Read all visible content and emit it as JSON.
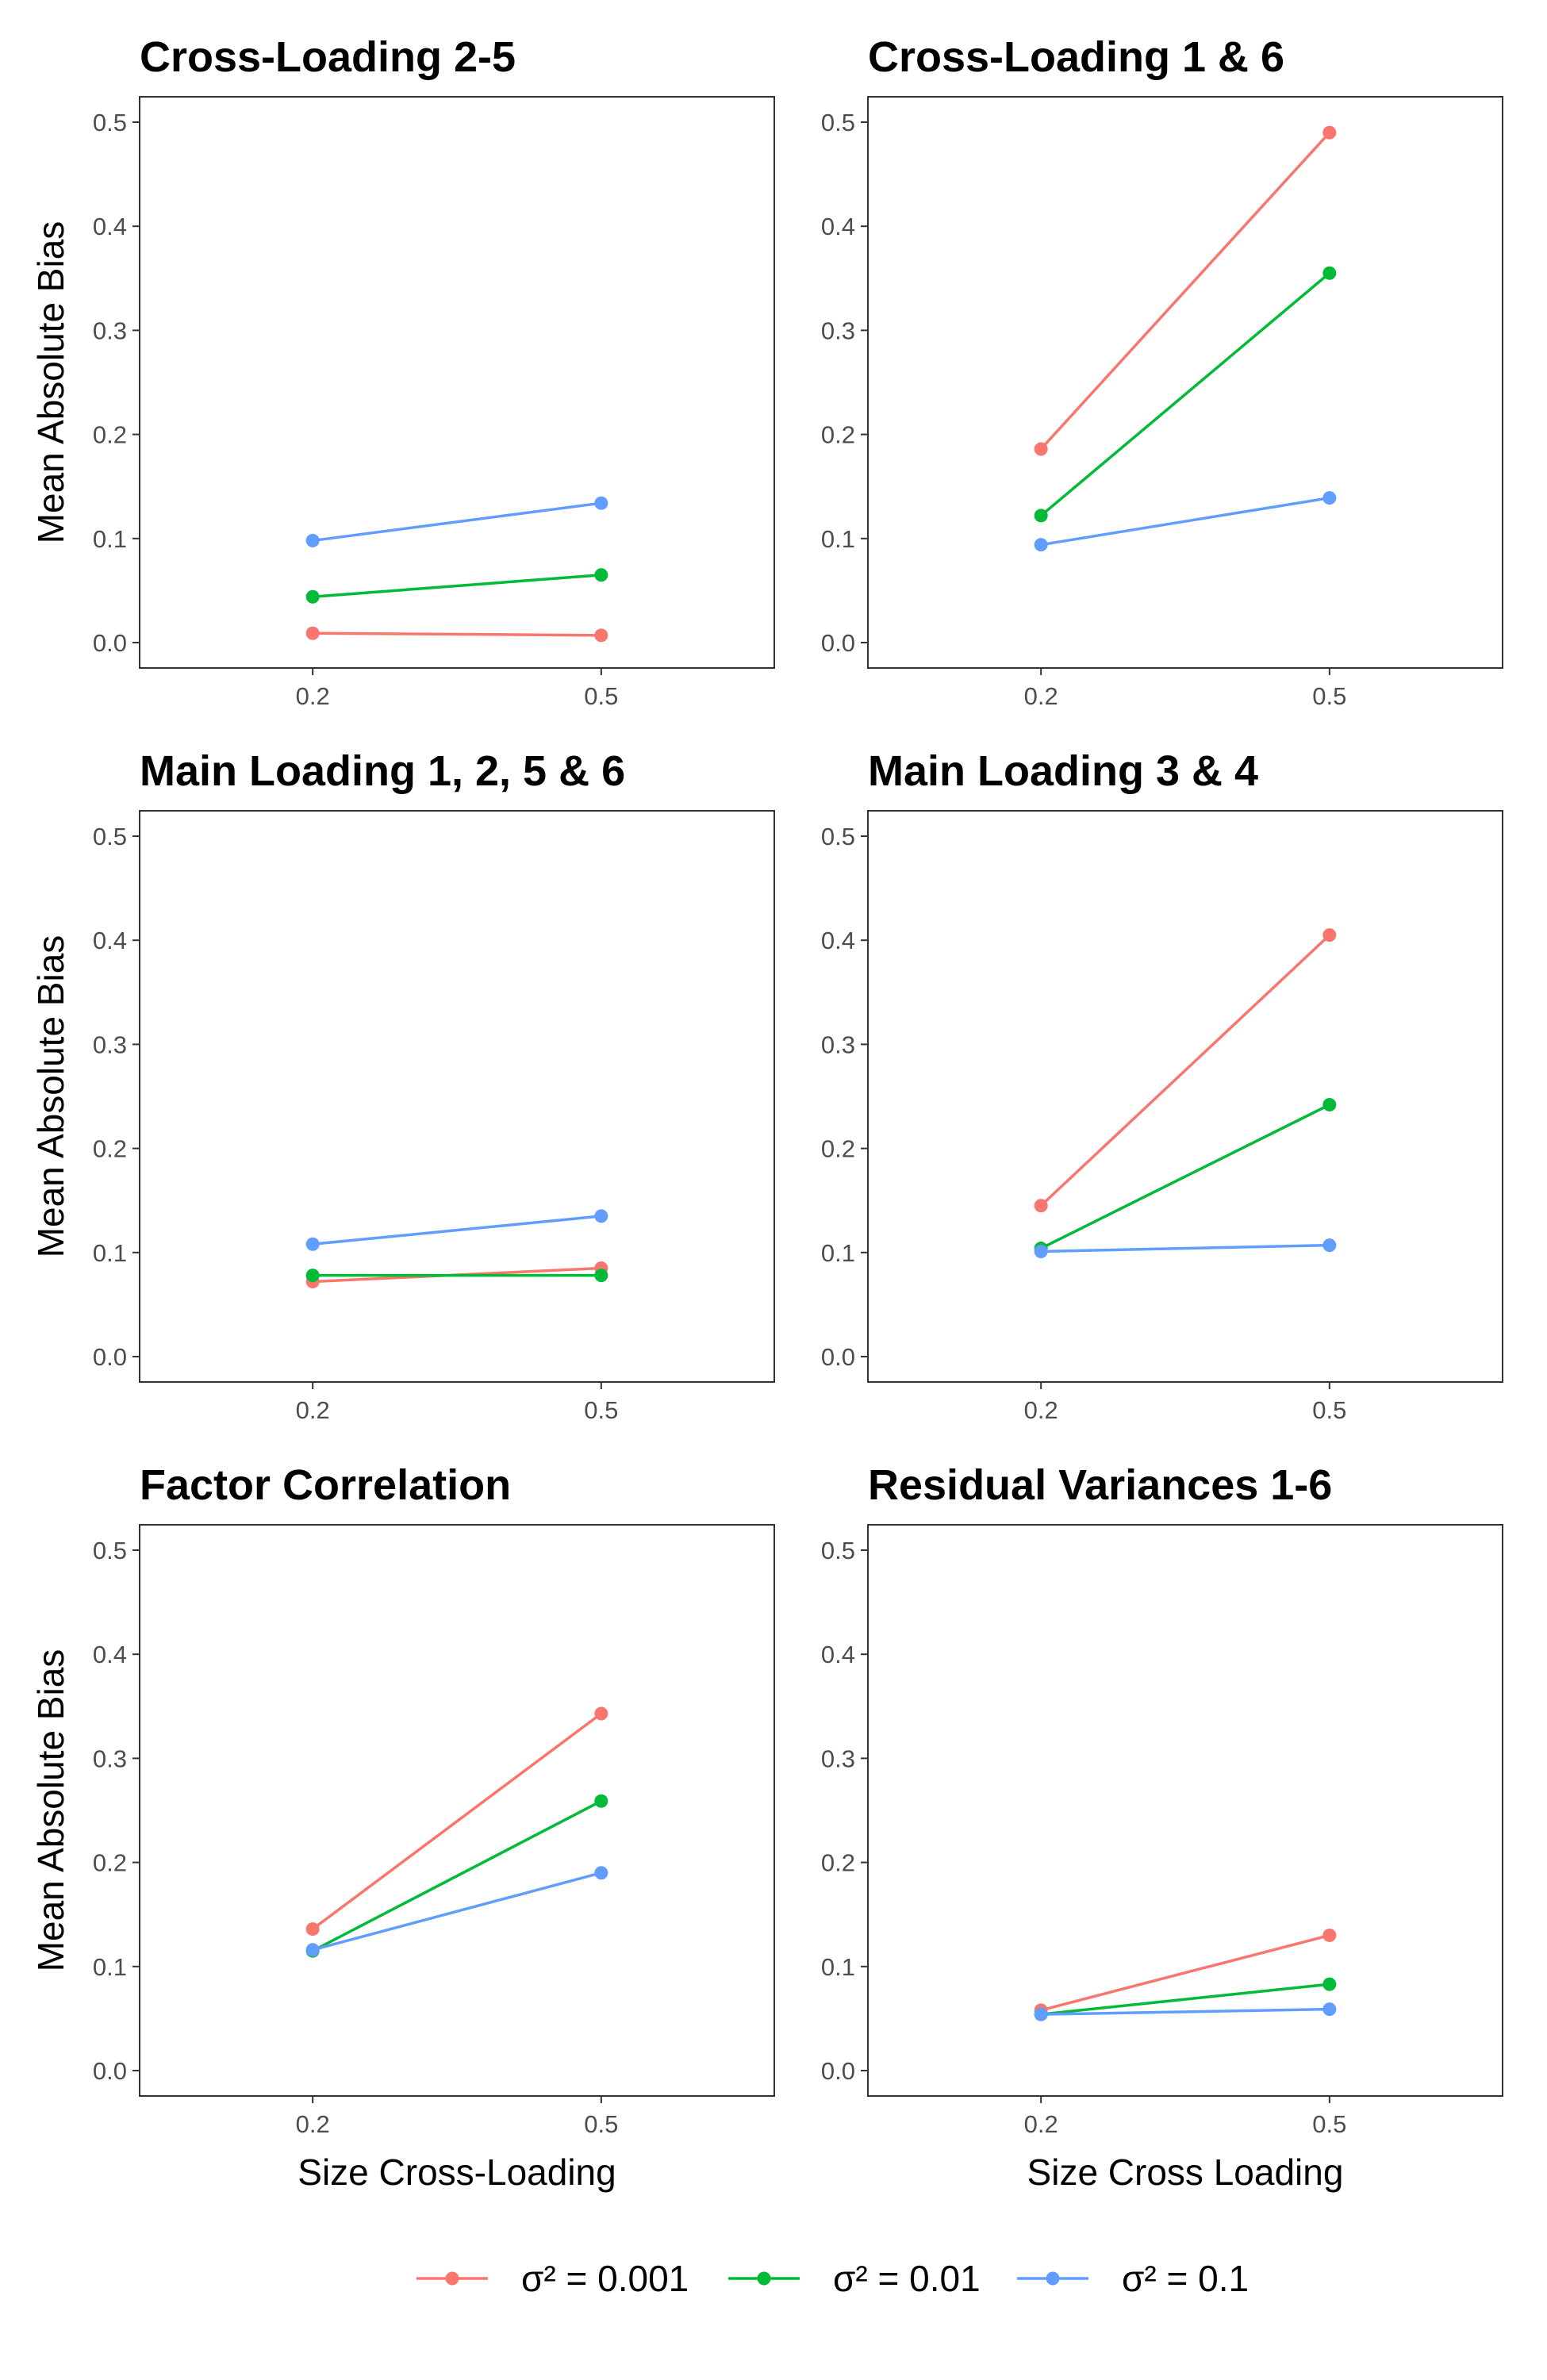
{
  "chart_data": {
    "type": "line",
    "ylim": [
      0,
      0.5
    ],
    "ytick_labels": [
      "0.0",
      "0.1",
      "0.2",
      "0.3",
      "0.4",
      "0.5"
    ],
    "yticks": [
      0,
      0.1,
      0.2,
      0.3,
      0.4,
      0.5
    ],
    "categories": [
      "0.2",
      "0.5"
    ],
    "grid": false,
    "legend_position": "bottom",
    "legend": [
      {
        "name": "σ² = 0.001",
        "color": "#F8766D"
      },
      {
        "name": "σ² = 0.01",
        "color": "#00BA38"
      },
      {
        "name": "σ² = 0.1",
        "color": "#619CFF"
      }
    ],
    "ylabel": "Mean Absolute Bias",
    "panels": [
      {
        "title": "Cross-Loading 2-5",
        "xlabel": "",
        "series": [
          {
            "name": "σ² = 0.001",
            "values": [
              0.009,
              0.007
            ]
          },
          {
            "name": "σ² = 0.01",
            "values": [
              0.044,
              0.065
            ]
          },
          {
            "name": "σ² = 0.1",
            "values": [
              0.098,
              0.134
            ]
          }
        ]
      },
      {
        "title": "Cross-Loading 1 & 6",
        "xlabel": "",
        "series": [
          {
            "name": "σ² = 0.001",
            "values": [
              0.186,
              0.49
            ]
          },
          {
            "name": "σ² = 0.01",
            "values": [
              0.122,
              0.355
            ]
          },
          {
            "name": "σ² = 0.1",
            "values": [
              0.094,
              0.139
            ]
          }
        ]
      },
      {
        "title": "Main Loading 1, 2, 5 & 6",
        "xlabel": "",
        "series": [
          {
            "name": "σ² = 0.001",
            "values": [
              0.072,
              0.085
            ]
          },
          {
            "name": "σ² = 0.01",
            "values": [
              0.078,
              0.078
            ]
          },
          {
            "name": "σ² = 0.1",
            "values": [
              0.108,
              0.135
            ]
          }
        ]
      },
      {
        "title": "Main Loading 3 & 4",
        "xlabel": "",
        "series": [
          {
            "name": "σ² = 0.001",
            "values": [
              0.145,
              0.405
            ]
          },
          {
            "name": "σ² = 0.01",
            "values": [
              0.104,
              0.242
            ]
          },
          {
            "name": "σ² = 0.1",
            "values": [
              0.101,
              0.107
            ]
          }
        ]
      },
      {
        "title": "Factor Correlation",
        "xlabel": "Size Cross-Loading",
        "series": [
          {
            "name": "σ² = 0.001",
            "values": [
              0.136,
              0.343
            ]
          },
          {
            "name": "σ² = 0.01",
            "values": [
              0.115,
              0.259
            ]
          },
          {
            "name": "σ² = 0.1",
            "values": [
              0.116,
              0.19
            ]
          }
        ]
      },
      {
        "title": "Residual Variances 1-6",
        "xlabel": "Size Cross Loading",
        "series": [
          {
            "name": "σ² = 0.001",
            "values": [
              0.058,
              0.13
            ]
          },
          {
            "name": "σ² = 0.01",
            "values": [
              0.054,
              0.083
            ]
          },
          {
            "name": "σ² = 0.1",
            "values": [
              0.054,
              0.059
            ]
          }
        ]
      }
    ]
  }
}
